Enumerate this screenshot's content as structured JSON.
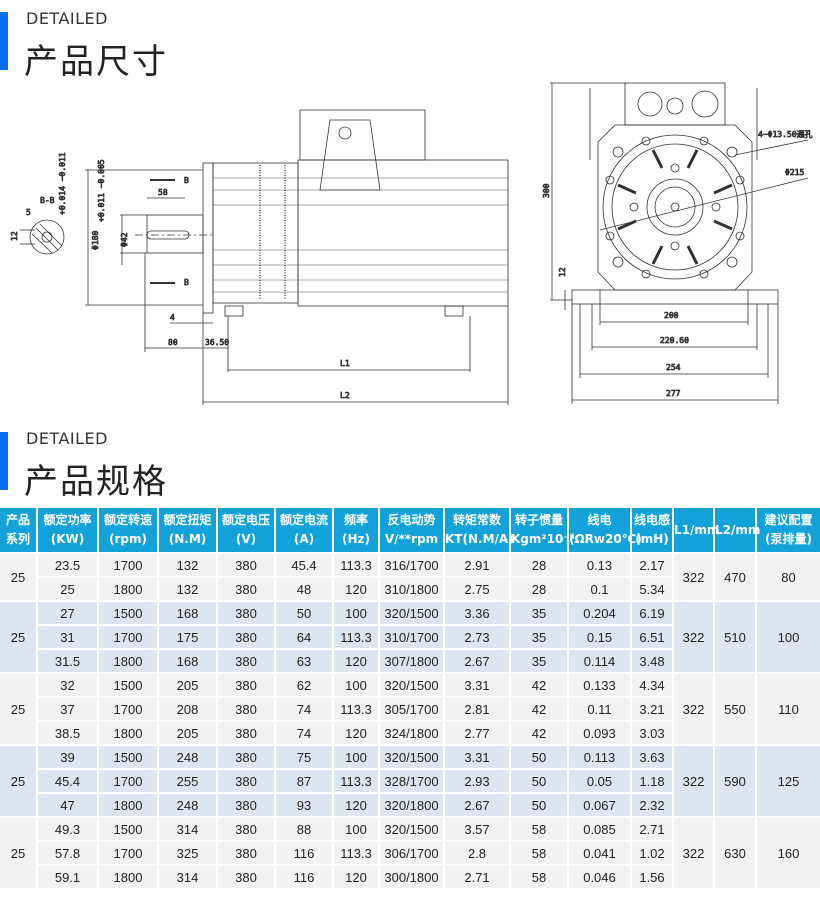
{
  "section1": {
    "en": "DETAILED",
    "cn": "产品尺寸"
  },
  "section2": {
    "en": "DETAILED",
    "cn": "产品规格"
  },
  "colors": {
    "accent_bar": "#0a6cf0",
    "header_bg": "#13a3da",
    "row_gray": "#f2f2f2",
    "row_blue": "#dce6f2"
  },
  "drawing": {
    "section_label": "B-B",
    "dim_5": "5",
    "dim_12": "12",
    "tol_180": "+0.014 −0.011",
    "dia_180": "Φ180",
    "tol_42": "+0.011 −0.005",
    "dia_42": "Φ42",
    "dim_58": "58",
    "mark_b1": "B",
    "mark_b2": "B",
    "dim_4": "4",
    "dim_80": "80",
    "dim_3650": "36.50",
    "dim_L1": "L1",
    "dim_L2": "L2",
    "dim_300": "300",
    "dim_12b": "12",
    "holes": "4−Φ13.50通孔",
    "dia_215": "Φ215",
    "dim_200": "200",
    "dim_22060": "220.60",
    "dim_254": "254",
    "dim_277": "277"
  },
  "table": {
    "headers": [
      [
        "产品",
        "系列"
      ],
      [
        "额定功率",
        "(KW)"
      ],
      [
        "额定转速",
        "(rpm)"
      ],
      [
        "额定扭矩",
        "(N.M)"
      ],
      [
        "额定电压",
        "(V)"
      ],
      [
        "额定电流",
        "(A)"
      ],
      [
        "频率",
        "(Hz)"
      ],
      [
        "反电动势",
        "V/**rpm"
      ],
      [
        "转矩常数",
        "KT(N.M/A)"
      ],
      [
        "转子惯量",
        "Kgm²10⁻³"
      ],
      [
        "线电",
        "(ΩRw20℃)"
      ],
      [
        "线电感",
        "(mH)"
      ],
      [
        "L1/mm",
        ""
      ],
      [
        "L2/mm",
        ""
      ],
      [
        "建议配置",
        "(泵排量)"
      ]
    ],
    "groups": [
      {
        "series": "25",
        "L1": "322",
        "L2": "470",
        "pump": "80",
        "rows": [
          [
            "23.5",
            "1700",
            "132",
            "380",
            "45.4",
            "113.3",
            "316/1700",
            "2.91",
            "28",
            "0.13",
            "2.17"
          ],
          [
            "25",
            "1800",
            "132",
            "380",
            "48",
            "120",
            "310/1800",
            "2.75",
            "28",
            "0.1",
            "5.34"
          ]
        ]
      },
      {
        "series": "25",
        "L1": "322",
        "L2": "510",
        "pump": "100",
        "rows": [
          [
            "27",
            "1500",
            "168",
            "380",
            "50",
            "100",
            "320/1500",
            "3.36",
            "35",
            "0.204",
            "6.19"
          ],
          [
            "31",
            "1700",
            "175",
            "380",
            "64",
            "113.3",
            "310/1700",
            "2.73",
            "35",
            "0.15",
            "6.51"
          ],
          [
            "31.5",
            "1800",
            "168",
            "380",
            "63",
            "120",
            "307/1800",
            "2.67",
            "35",
            "0.114",
            "3.48"
          ]
        ]
      },
      {
        "series": "25",
        "L1": "322",
        "L2": "550",
        "pump": "110",
        "rows": [
          [
            "32",
            "1500",
            "205",
            "380",
            "62",
            "100",
            "320/1500",
            "3.31",
            "42",
            "0.133",
            "4.34"
          ],
          [
            "37",
            "1700",
            "208",
            "380",
            "74",
            "113.3",
            "305/1700",
            "2.81",
            "42",
            "0.11",
            "3.21"
          ],
          [
            "38.5",
            "1800",
            "205",
            "380",
            "74",
            "120",
            "324/1800",
            "2.77",
            "42",
            "0.093",
            "3.03"
          ]
        ]
      },
      {
        "series": "25",
        "L1": "322",
        "L2": "590",
        "pump": "125",
        "rows": [
          [
            "39",
            "1500",
            "248",
            "380",
            "75",
            "100",
            "320/1500",
            "3.31",
            "50",
            "0.113",
            "3.63"
          ],
          [
            "45.4",
            "1700",
            "255",
            "380",
            "87",
            "113.3",
            "328/1700",
            "2.93",
            "50",
            "0.05",
            "1.18"
          ],
          [
            "47",
            "1800",
            "248",
            "380",
            "93",
            "120",
            "320/1800",
            "2.67",
            "50",
            "0.067",
            "2.32"
          ]
        ]
      },
      {
        "series": "25",
        "L1": "322",
        "L2": "630",
        "pump": "160",
        "rows": [
          [
            "49.3",
            "1500",
            "314",
            "380",
            "88",
            "100",
            "320/1500",
            "3.57",
            "58",
            "0.085",
            "2.71"
          ],
          [
            "57.8",
            "1700",
            "325",
            "380",
            "116",
            "113.3",
            "306/1700",
            "2.8",
            "58",
            "0.041",
            "1.02"
          ],
          [
            "59.1",
            "1800",
            "314",
            "380",
            "116",
            "120",
            "300/1800",
            "2.71",
            "58",
            "0.046",
            "1.56"
          ]
        ]
      }
    ]
  }
}
